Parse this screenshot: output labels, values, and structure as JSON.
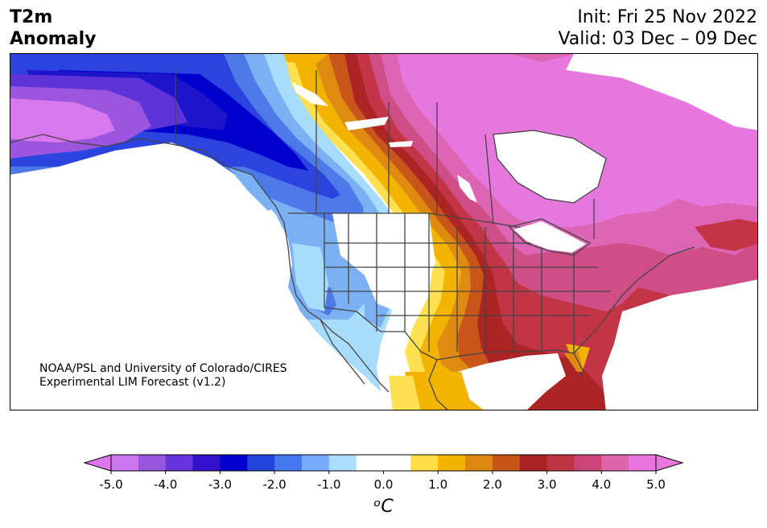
{
  "title": {
    "left_line1": "T2m",
    "left_line2": "Anomaly",
    "right_line1": "Init: Fri 25 Nov 2022",
    "right_line2": "Valid: 03 Dec – 09 Dec"
  },
  "credit": {
    "line1": "NOAA/PSL and University of Colorado/CIRES",
    "line2": "Experimental LIM Forecast (v1.2)"
  },
  "colorbar": {
    "ticks": [
      "-5.0",
      "-4.0",
      "-3.0",
      "-2.0",
      "-1.0",
      "0.0",
      "1.0",
      "2.0",
      "3.0",
      "4.0",
      "5.0"
    ],
    "unit": "ᵒC",
    "min_extend_color": "#dd77ee",
    "max_extend_color": "#e677dd",
    "colors": [
      "#cc77ee",
      "#9955dd",
      "#6633dd",
      "#3311cc",
      "#0000cc",
      "#2244dd",
      "#4477ee",
      "#77aaff",
      "#aaddff",
      "#ffffff",
      "#ffffff",
      "#ffdd44",
      "#f2b400",
      "#dd8811",
      "#c85518",
      "#aa2222",
      "#c03344",
      "#cc4477",
      "#dd66aa",
      "#e877dd"
    ]
  },
  "legend_palette": {
    "cold5": "#d878ee",
    "cold4": "#9b55de",
    "cold3": "#5e33d8",
    "cold2": "#1e14cc",
    "cold15": "#0000cc",
    "cold1": "#2b44e0",
    "cold05": "#4d7ae8",
    "cool": "#7cb0f4",
    "cool2": "#a8dcfc",
    "warm05": "#ffe050",
    "warm1": "#f2b400",
    "warm2": "#df8a10",
    "warm25": "#c8561a",
    "warm3": "#ad2424",
    "warm35": "#c33546",
    "warm4": "#d04e86",
    "warm45": "#dc66b4",
    "warm5": "#e677dd"
  }
}
